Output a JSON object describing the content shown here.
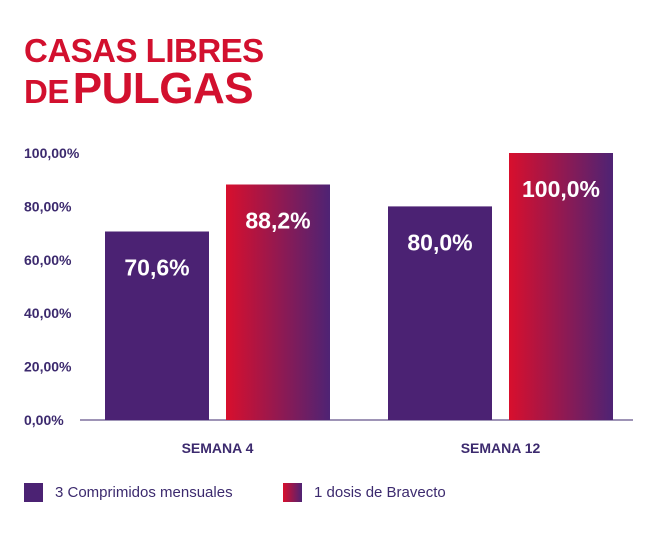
{
  "title": {
    "line1": "CASAS LIBRES",
    "line2_small": "DE",
    "line2_big": "PULGAS"
  },
  "colors": {
    "series1": "#4b2273",
    "series2_start": "#d80f2d",
    "series2_end": "#4e2374",
    "title": "#d2102e",
    "axis_text": "#3c2a6e"
  },
  "chart_data": {
    "type": "bar",
    "categories": [
      "SEMANA 4",
      "SEMANA 12"
    ],
    "series": [
      {
        "name": "3 Comprimidos mensuales",
        "values": [
          70.6,
          80.0
        ],
        "labels": [
          "70,6%",
          "80,0%"
        ]
      },
      {
        "name": "1 dosis de Bravecto",
        "values": [
          88.2,
          100.0
        ],
        "labels": [
          "88,2%",
          "100,0%"
        ]
      }
    ],
    "yticks": [
      "0,00%",
      "20,00%",
      "40,00%",
      "60,00%",
      "80,00%",
      "100,00%"
    ],
    "ylim": [
      0,
      100
    ],
    "grid": false,
    "legend_position": "bottom"
  }
}
